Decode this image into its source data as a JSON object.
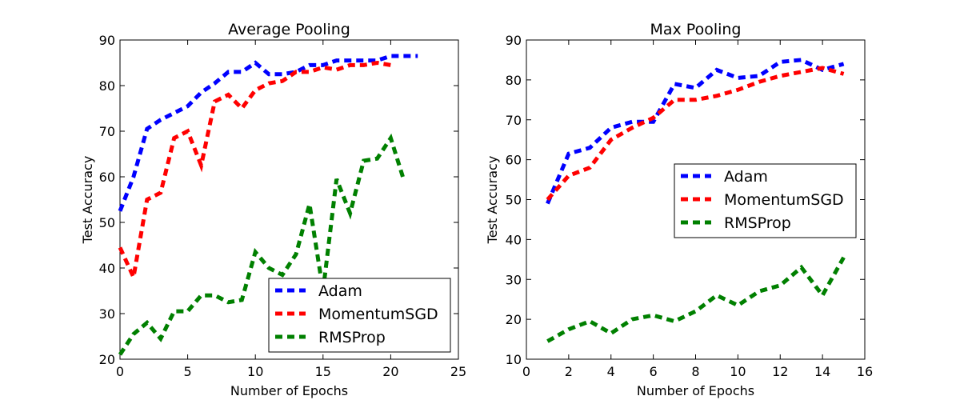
{
  "chart_data": [
    {
      "type": "line",
      "title": "Average Pooling",
      "xlabel": "Number of Epochs",
      "ylabel": "Test Accuracy",
      "xlim": [
        0,
        25
      ],
      "ylim": [
        20,
        90
      ],
      "xticks": [
        0,
        5,
        10,
        15,
        20,
        25
      ],
      "yticks": [
        20,
        30,
        40,
        50,
        60,
        70,
        80,
        90
      ],
      "grid": false,
      "legend_position": "lower-right",
      "series": [
        {
          "name": "Adam",
          "color": "#0000ff",
          "x": [
            0,
            1,
            2,
            3,
            4,
            5,
            6,
            7,
            8,
            9,
            10,
            11,
            12,
            13,
            14,
            15,
            16,
            17,
            18,
            19,
            20,
            21,
            22
          ],
          "y": [
            52.5,
            60,
            70.5,
            72.5,
            74,
            75.5,
            78.5,
            80.5,
            83,
            83,
            85,
            82.5,
            82.5,
            83,
            84.5,
            84.5,
            85.5,
            85.5,
            85.5,
            85.5,
            86.5,
            86.5,
            86.5
          ]
        },
        {
          "name": "MomentumSGD",
          "color": "#ff0000",
          "x": [
            0,
            1,
            2,
            3,
            4,
            5,
            6,
            7,
            8,
            9,
            10,
            11,
            12,
            13,
            14,
            15,
            16,
            17,
            18,
            19,
            20
          ],
          "y": [
            44.5,
            38,
            55,
            56.5,
            68.5,
            70,
            62.5,
            76.5,
            78,
            75,
            79,
            80.5,
            81,
            83,
            83,
            84,
            83.5,
            84.5,
            84.5,
            85,
            84.5
          ]
        },
        {
          "name": "RMSProp",
          "color": "#008000",
          "x": [
            0,
            1,
            2,
            3,
            4,
            5,
            6,
            7,
            8,
            9,
            10,
            11,
            12,
            13,
            14,
            15,
            16,
            17,
            18,
            19,
            20,
            21
          ],
          "y": [
            21,
            25.5,
            28,
            24.5,
            30.5,
            30.5,
            34,
            34,
            32.5,
            33,
            43.5,
            40,
            38.5,
            43,
            54,
            35,
            59.5,
            52,
            63.5,
            64,
            68.5,
            59
          ]
        }
      ]
    },
    {
      "type": "line",
      "title": "Max Pooling",
      "xlabel": "Number of Epochs",
      "ylabel": "Test Accuracy",
      "xlim": [
        0,
        16
      ],
      "ylim": [
        10,
        90
      ],
      "xticks": [
        0,
        2,
        4,
        6,
        8,
        10,
        12,
        14,
        16
      ],
      "yticks": [
        10,
        20,
        30,
        40,
        50,
        60,
        70,
        80,
        90
      ],
      "grid": false,
      "legend_position": "center-right",
      "series": [
        {
          "name": "Adam",
          "color": "#0000ff",
          "x": [
            1,
            2,
            3,
            4,
            5,
            6,
            7,
            8,
            9,
            10,
            11,
            12,
            13,
            14,
            15
          ],
          "y": [
            49,
            61.5,
            63,
            68,
            69.5,
            69.5,
            79,
            78,
            82.5,
            80.5,
            81,
            84.5,
            85,
            82.5,
            84
          ]
        },
        {
          "name": "MomentumSGD",
          "color": "#ff0000",
          "x": [
            1,
            2,
            3,
            4,
            5,
            6,
            7,
            8,
            9,
            10,
            11,
            12,
            13,
            14,
            15
          ],
          "y": [
            50,
            56,
            58,
            65,
            68,
            70.5,
            75,
            75,
            76,
            77.5,
            79.5,
            81,
            82,
            83,
            81.5
          ]
        },
        {
          "name": "RMSProp",
          "color": "#008000",
          "x": [
            1,
            2,
            3,
            4,
            5,
            6,
            7,
            8,
            9,
            10,
            11,
            12,
            13,
            14,
            15
          ],
          "y": [
            14.5,
            17.5,
            19.5,
            16.5,
            20,
            21,
            19.5,
            22,
            26,
            23.5,
            27,
            28.5,
            33,
            26,
            35.5
          ]
        }
      ]
    }
  ]
}
